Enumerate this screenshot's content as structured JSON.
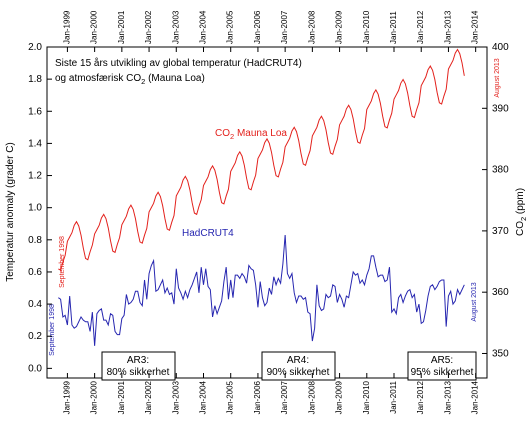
{
  "chart_data": {
    "type": "line",
    "title": "Siste 15 års utvikling av global temperatur (HadCRUT4)",
    "subtitle": "og atmosfærisk CO2 (Mauna Loa)",
    "y_label": "Temperatur anomaly (grader C)",
    "y2_label": "CO2 (ppm)",
    "annotations": [
      "September 1998",
      "August 2013",
      "September 1998",
      "August 2013"
    ],
    "boxes": [
      [
        "AR3:",
        "80% sikkerhet"
      ],
      [
        "AR4:",
        "90% sikkerhet"
      ],
      [
        "AR5:",
        "95% sikkerhet"
      ]
    ],
    "xlim": [
      "1998-04",
      "2014-06"
    ],
    "xticks": [
      {
        "value": "1999-01",
        "label": "Jan-1999"
      },
      {
        "value": "2000-01",
        "label": "Jan-2000"
      },
      {
        "value": "2001-01",
        "label": "Jan-2001"
      },
      {
        "value": "2002-01",
        "label": "Jan-2002"
      },
      {
        "value": "2003-01",
        "label": "Jan-2003"
      },
      {
        "value": "2004-01",
        "label": "Jan-2004"
      },
      {
        "value": "2005-01",
        "label": "Jan-2005"
      },
      {
        "value": "2006-01",
        "label": "Jan-2006"
      },
      {
        "value": "2007-01",
        "label": "Jan-2007"
      },
      {
        "value": "2008-01",
        "label": "Jan-2008"
      },
      {
        "value": "2009-01",
        "label": "Jan-2009"
      },
      {
        "value": "2010-01",
        "label": "Jan-2010"
      },
      {
        "value": "2011-01",
        "label": "Jan-2011"
      },
      {
        "value": "2012-01",
        "label": "Jan-2012"
      },
      {
        "value": "2013-01",
        "label": "Jan-2013"
      },
      {
        "value": "2014-01",
        "label": "Jan-2014"
      }
    ],
    "ylim": [
      -0.06,
      2.0
    ],
    "yticks": [
      {
        "value": 0,
        "label": "0.0"
      },
      0.2,
      0.4,
      0.6,
      0.8,
      {
        "value": 1,
        "label": "1.0"
      },
      1.2,
      1.4,
      1.6,
      1.8,
      {
        "value": 2,
        "label": "2.0"
      }
    ],
    "y2lim": [
      346,
      400
    ],
    "y2ticks": [
      350,
      360,
      370,
      380,
      390,
      400
    ],
    "x": [
      "1998-09",
      "1998-10",
      "1998-11",
      "1998-12",
      "1999-01",
      "1999-02",
      "1999-03",
      "1999-04",
      "1999-05",
      "1999-06",
      "1999-07",
      "1999-08",
      "1999-09",
      "1999-10",
      "1999-11",
      "1999-12",
      "2000-01",
      "2000-02",
      "2000-03",
      "2000-04",
      "2000-05",
      "2000-06",
      "2000-07",
      "2000-08",
      "2000-09",
      "2000-10",
      "2000-11",
      "2000-12",
      "2001-01",
      "2001-02",
      "2001-03",
      "2001-04",
      "2001-05",
      "2001-06",
      "2001-07",
      "2001-08",
      "2001-09",
      "2001-10",
      "2001-11",
      "2001-12",
      "2002-01",
      "2002-02",
      "2002-03",
      "2002-04",
      "2002-05",
      "2002-06",
      "2002-07",
      "2002-08",
      "2002-09",
      "2002-10",
      "2002-11",
      "2002-12",
      "2003-01",
      "2003-02",
      "2003-03",
      "2003-04",
      "2003-05",
      "2003-06",
      "2003-07",
      "2003-08",
      "2003-09",
      "2003-10",
      "2003-11",
      "2003-12",
      "2004-01",
      "2004-02",
      "2004-03",
      "2004-04",
      "2004-05",
      "2004-06",
      "2004-07",
      "2004-08",
      "2004-09",
      "2004-10",
      "2004-11",
      "2004-12",
      "2005-01",
      "2005-02",
      "2005-03",
      "2005-04",
      "2005-05",
      "2005-06",
      "2005-07",
      "2005-08",
      "2005-09",
      "2005-10",
      "2005-11",
      "2005-12",
      "2006-01",
      "2006-02",
      "2006-03",
      "2006-04",
      "2006-05",
      "2006-06",
      "2006-07",
      "2006-08",
      "2006-09",
      "2006-10",
      "2006-11",
      "2006-12",
      "2007-01",
      "2007-02",
      "2007-03",
      "2007-04",
      "2007-05",
      "2007-06",
      "2007-07",
      "2007-08",
      "2007-09",
      "2007-10",
      "2007-11",
      "2007-12",
      "2008-01",
      "2008-02",
      "2008-03",
      "2008-04",
      "2008-05",
      "2008-06",
      "2008-07",
      "2008-08",
      "2008-09",
      "2008-10",
      "2008-11",
      "2008-12",
      "2009-01",
      "2009-02",
      "2009-03",
      "2009-04",
      "2009-05",
      "2009-06",
      "2009-07",
      "2009-08",
      "2009-09",
      "2009-10",
      "2009-11",
      "2009-12",
      "2010-01",
      "2010-02",
      "2010-03",
      "2010-04",
      "2010-05",
      "2010-06",
      "2010-07",
      "2010-08",
      "2010-09",
      "2010-10",
      "2010-11",
      "2010-12",
      "2011-01",
      "2011-02",
      "2011-03",
      "2011-04",
      "2011-05",
      "2011-06",
      "2011-07",
      "2011-08",
      "2011-09",
      "2011-10",
      "2011-11",
      "2011-12",
      "2012-01",
      "2012-02",
      "2012-03",
      "2012-04",
      "2012-05",
      "2012-06",
      "2012-07",
      "2012-08",
      "2012-09",
      "2012-10",
      "2012-11",
      "2012-12",
      "2013-01",
      "2013-02",
      "2013-03",
      "2013-04",
      "2013-05",
      "2013-06",
      "2013-07",
      "2013-08"
    ],
    "series": [
      {
        "name": "CO2 Mauna Loa",
        "color": "#e3211c",
        "axis": "y2",
        "values": [
          363.8,
          363.6,
          364.9,
          366.0,
          368.3,
          369.0,
          369.7,
          370.9,
          371.5,
          370.8,
          369.3,
          367.2,
          365.5,
          365.3,
          366.6,
          367.7,
          369.5,
          370.2,
          370.9,
          372.1,
          372.7,
          372.0,
          370.5,
          368.4,
          366.7,
          366.5,
          367.8,
          368.9,
          371.0,
          371.7,
          372.4,
          373.6,
          374.2,
          373.5,
          372.0,
          369.9,
          368.2,
          368.0,
          369.3,
          370.4,
          373.1,
          373.8,
          374.5,
          375.7,
          376.3,
          375.6,
          374.1,
          372.0,
          370.3,
          370.1,
          371.4,
          372.5,
          375.7,
          376.4,
          377.1,
          378.3,
          378.9,
          378.2,
          376.7,
          374.6,
          372.9,
          372.7,
          374.0,
          375.1,
          377.4,
          378.1,
          378.8,
          380.0,
          380.6,
          379.9,
          378.4,
          376.3,
          374.6,
          374.4,
          375.7,
          376.8,
          379.7,
          380.4,
          381.1,
          382.3,
          382.9,
          382.2,
          380.7,
          378.6,
          376.9,
          376.7,
          378.0,
          379.1,
          381.8,
          382.5,
          383.2,
          384.4,
          385.0,
          384.3,
          382.8,
          380.7,
          379.0,
          378.8,
          380.1,
          381.2,
          383.7,
          384.4,
          385.1,
          386.3,
          386.9,
          386.2,
          384.7,
          382.6,
          380.9,
          380.7,
          382.0,
          383.1,
          385.5,
          386.2,
          386.9,
          388.1,
          388.7,
          388.0,
          386.5,
          384.4,
          382.7,
          382.5,
          383.8,
          384.9,
          387.3,
          388.0,
          388.7,
          389.9,
          390.5,
          389.8,
          388.3,
          386.2,
          384.5,
          384.3,
          385.6,
          386.7,
          389.8,
          390.5,
          391.2,
          392.4,
          393.0,
          392.3,
          390.8,
          388.7,
          387.0,
          386.8,
          388.1,
          389.2,
          391.5,
          392.2,
          392.9,
          394.1,
          394.7,
          394.0,
          392.5,
          390.4,
          388.7,
          388.5,
          389.8,
          390.9,
          393.7,
          394.4,
          395.1,
          396.3,
          396.9,
          396.2,
          394.7,
          392.6,
          390.9,
          390.7,
          392.0,
          393.1,
          396.4,
          397.1,
          397.8,
          399.0,
          399.6,
          398.9,
          397.4,
          395.3
        ]
      },
      {
        "name": "HadCRUT4",
        "color": "#2626b0",
        "values": [
          0.44,
          0.43,
          0.32,
          0.33,
          0.27,
          0.45,
          0.27,
          0.25,
          0.26,
          0.29,
          0.32,
          0.3,
          0.29,
          0.29,
          0.23,
          0.35,
          0.14,
          0.34,
          0.36,
          0.37,
          0.3,
          0.3,
          0.27,
          0.34,
          0.33,
          0.23,
          0.21,
          0.21,
          0.31,
          0.33,
          0.46,
          0.4,
          0.41,
          0.43,
          0.48,
          0.48,
          0.41,
          0.39,
          0.55,
          0.43,
          0.59,
          0.64,
          0.67,
          0.48,
          0.49,
          0.52,
          0.55,
          0.47,
          0.5,
          0.46,
          0.47,
          0.4,
          0.62,
          0.5,
          0.47,
          0.43,
          0.48,
          0.44,
          0.49,
          0.52,
          0.56,
          0.6,
          0.47,
          0.63,
          0.52,
          0.62,
          0.51,
          0.49,
          0.32,
          0.39,
          0.34,
          0.38,
          0.42,
          0.54,
          0.63,
          0.43,
          0.55,
          0.44,
          0.58,
          0.58,
          0.56,
          0.59,
          0.57,
          0.53,
          0.64,
          0.62,
          0.61,
          0.52,
          0.38,
          0.54,
          0.44,
          0.39,
          0.41,
          0.5,
          0.46,
          0.57,
          0.52,
          0.56,
          0.53,
          0.65,
          0.83,
          0.59,
          0.56,
          0.59,
          0.47,
          0.41,
          0.45,
          0.45,
          0.43,
          0.44,
          0.35,
          0.34,
          0.17,
          0.25,
          0.52,
          0.39,
          0.36,
          0.37,
          0.46,
          0.44,
          0.45,
          0.52,
          0.51,
          0.41,
          0.46,
          0.43,
          0.38,
          0.45,
          0.44,
          0.52,
          0.6,
          0.58,
          0.59,
          0.53,
          0.55,
          0.52,
          0.58,
          0.62,
          0.7,
          0.7,
          0.63,
          0.57,
          0.58,
          0.58,
          0.54,
          0.55,
          0.63,
          0.35,
          0.37,
          0.34,
          0.44,
          0.46,
          0.41,
          0.45,
          0.48,
          0.49,
          0.44,
          0.46,
          0.35,
          0.4,
          0.28,
          0.29,
          0.36,
          0.45,
          0.51,
          0.52,
          0.49,
          0.51,
          0.54,
          0.55,
          0.55,
          0.26,
          0.45,
          0.48,
          0.4,
          0.42,
          0.49,
          0.46,
          0.49,
          0.52
        ]
      }
    ]
  }
}
